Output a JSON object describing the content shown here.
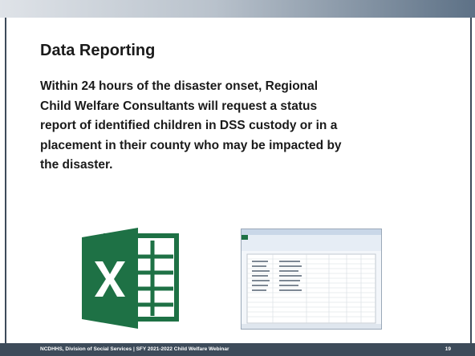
{
  "slide": {
    "title": "Data Reporting",
    "body_lines": [
      "Within 24 hours of the disaster onset, Regional",
      "Child Welfare Consultants will request a status",
      "report of identified children in DSS custody or in a",
      "placement in their county who may be impacted by",
      "the disaster."
    ],
    "footer": "NCDHHS, Division of Social Services | SFY 2021-2022 Child Welfare Webinar",
    "page_number": "19"
  }
}
